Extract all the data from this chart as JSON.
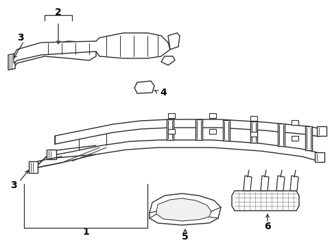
{
  "background_color": "#ffffff",
  "line_color": "#2a2a2a",
  "line_width": 1.0,
  "figsize": [
    4.85,
    3.57
  ],
  "dpi": 100,
  "label_fontsize": 9
}
